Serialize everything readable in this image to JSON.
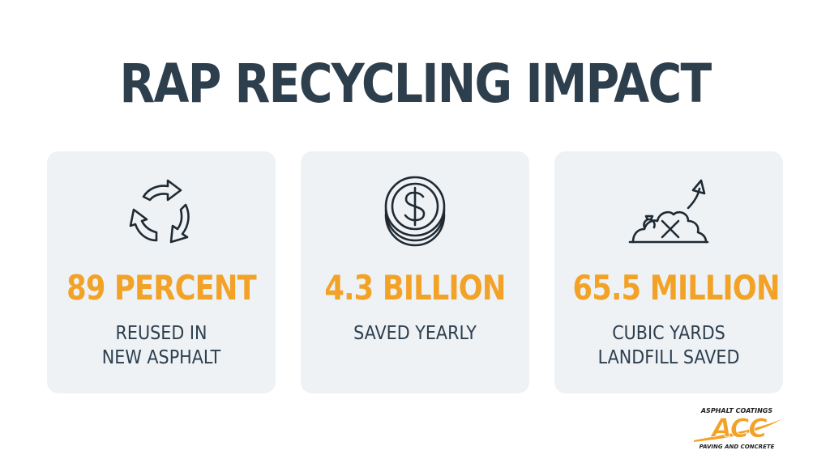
{
  "title": "RAP RECYCLING IMPACT",
  "colors": {
    "title": "#2d3e4d",
    "accent": "#f2a227",
    "card_bg": "#eef2f5"
  },
  "cards": [
    {
      "icon": "recycle-arrows-icon",
      "stat": "89 PERCENT",
      "desc_line1": "REUSED IN",
      "desc_line2": "NEW ASPHALT"
    },
    {
      "icon": "dollar-coin-icon",
      "stat": "4.3 BILLION",
      "desc_line1": "SAVED YEARLY",
      "desc_line2": ""
    },
    {
      "icon": "landfill-saved-icon",
      "stat": "65.5 MILLION",
      "desc_line1": "CUBIC YARDS",
      "desc_line2": "LANDFILL SAVED"
    }
  ],
  "logo": {
    "top_text": "ASPHALT COATINGS",
    "mark_text": "ACC",
    "bottom_text": "PAVING AND CONCRETE"
  }
}
